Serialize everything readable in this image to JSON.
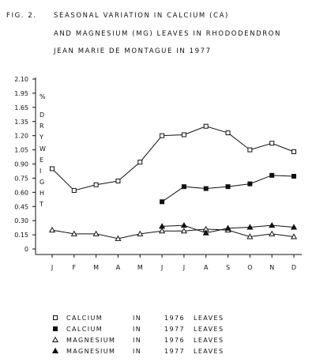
{
  "chart_data": {
    "type": "line",
    "fig_label": "FIG. 2.",
    "title_lines": [
      "SEASONAL VARIATION IN CALCIUM (CA)",
      "AND MAGNESIUM (MG) LEAVES IN RHODODENDRON",
      "JEAN MARIE DE MONTAGUE IN 1977"
    ],
    "ylabel_unit": "%",
    "ylabel_letters": [
      "D",
      "R",
      "Y",
      "W",
      "E",
      "I",
      "G",
      "H",
      "T"
    ],
    "categories": [
      "J",
      "F",
      "M",
      "A",
      "M",
      "J",
      "J",
      "A",
      "S",
      "O",
      "N",
      "D"
    ],
    "yticks": [
      "0",
      "0.15",
      "0.30",
      "0.45",
      "0.60",
      "0.75",
      "0.90",
      "1.05",
      "1.20",
      "1.35",
      "1.65",
      "1.95",
      "2.10"
    ],
    "ytick_values": [
      0,
      0.15,
      0.3,
      0.45,
      0.6,
      0.75,
      0.9,
      1.05,
      1.2,
      1.35,
      1.65,
      1.95,
      2.1
    ],
    "series": [
      {
        "name": "CALCIUM IN 1976 LEAVES",
        "marker": "open-square",
        "values": [
          0.85,
          0.62,
          0.68,
          0.72,
          0.92,
          1.2,
          1.21,
          1.3,
          1.23,
          1.05,
          1.12,
          1.03
        ]
      },
      {
        "name": "CALCIUM IN 1977 LEAVES",
        "marker": "filled-square",
        "values": [
          null,
          null,
          null,
          null,
          null,
          0.5,
          0.66,
          0.64,
          0.66,
          0.69,
          0.78,
          0.77
        ]
      },
      {
        "name": "MAGNESIUM IN 1976 LEAVES",
        "marker": "open-triangle",
        "values": [
          0.2,
          0.16,
          0.16,
          0.11,
          0.16,
          0.19,
          0.19,
          0.21,
          0.2,
          0.13,
          0.16,
          0.13
        ]
      },
      {
        "name": "MAGNESIUM IN 1977 LEAVES",
        "marker": "filled-triangle",
        "values": [
          null,
          null,
          null,
          null,
          null,
          0.24,
          0.25,
          0.17,
          0.22,
          0.23,
          0.25,
          0.23
        ]
      }
    ],
    "legend": [
      {
        "marker": "open-square",
        "a": "CALCIUM",
        "b": "IN",
        "c": "1976",
        "d": "LEAVES"
      },
      {
        "marker": "filled-square",
        "a": "CALCIUM",
        "b": "IN",
        "c": "1977",
        "d": "LEAVES"
      },
      {
        "marker": "open-triangle",
        "a": "MAGNESIUM",
        "b": "IN",
        "c": "1976",
        "d": "LEAVES"
      },
      {
        "marker": "filled-triangle",
        "a": "MAGNESIUM",
        "b": "IN",
        "c": "1977",
        "d": "LEAVES"
      }
    ],
    "legend_placement": "bottom",
    "grid": false,
    "ink_color": "#111111"
  }
}
